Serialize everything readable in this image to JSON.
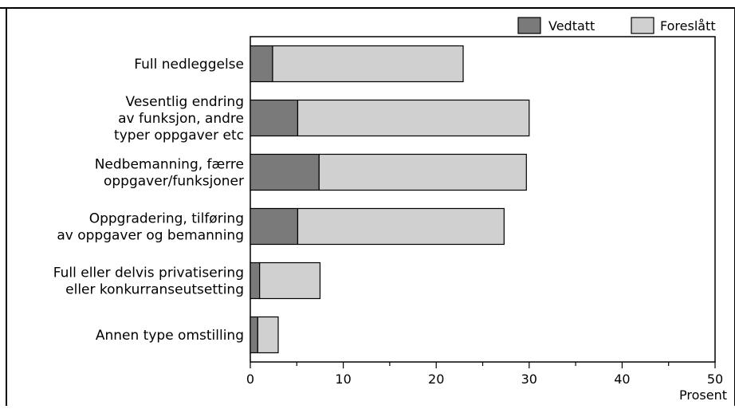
{
  "chart_data": {
    "type": "bar",
    "orientation": "horizontal",
    "stacked": true,
    "categories": [
      [
        "Full nedleggelse"
      ],
      [
        "Vesentlig endring",
        "av funksjon, andre",
        "typer oppgaver etc"
      ],
      [
        "Nedbemanning, færre",
        "oppgaver/funksjoner"
      ],
      [
        "Oppgradering, tilføring",
        "av oppgaver og bemanning"
      ],
      [
        "Full eller delvis privatisering",
        "eller konkurranseutsetting"
      ],
      [
        "Annen type omstilling"
      ]
    ],
    "series": [
      {
        "name": "Vedtatt",
        "color": "#7a7a7a",
        "values": [
          2.4,
          5.1,
          7.4,
          5.1,
          1.0,
          0.8
        ]
      },
      {
        "name": "Foreslått",
        "color": "#d0d0d0",
        "values": [
          20.5,
          24.9,
          22.3,
          22.2,
          6.5,
          2.2
        ]
      }
    ],
    "x_ticks": [
      "0",
      "10",
      "20",
      "30",
      "40",
      "50"
    ],
    "xlim": [
      0,
      50
    ],
    "xlabel": "Prosent",
    "legend_position": "top-right",
    "grid": false
  }
}
